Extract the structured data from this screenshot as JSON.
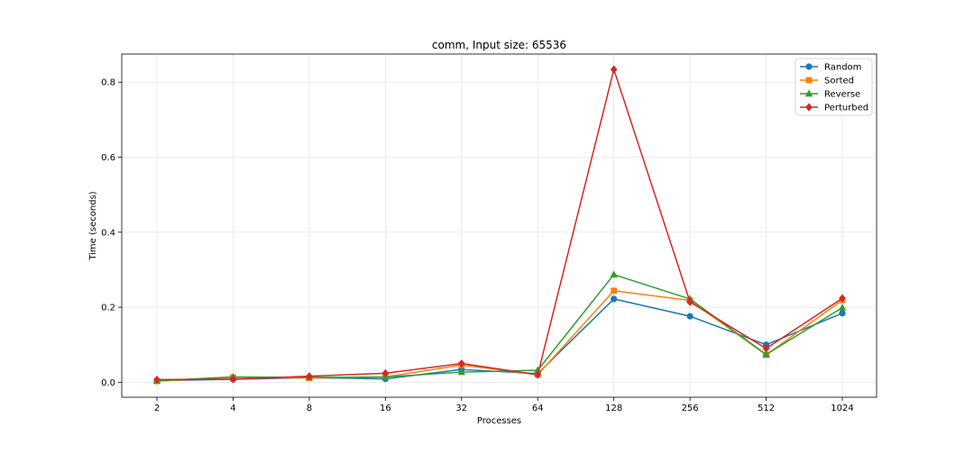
{
  "chart_data": {
    "type": "line",
    "title": "comm, Input size: 65536",
    "xlabel": "Processes",
    "ylabel": "Time (seconds)",
    "categories": [
      "2",
      "4",
      "8",
      "16",
      "32",
      "64",
      "128",
      "256",
      "512",
      "1024"
    ],
    "ylim": [
      -0.04,
      0.875
    ],
    "yticks": [
      0.0,
      0.2,
      0.4,
      0.6,
      0.8
    ],
    "ytick_labels": [
      "0.0",
      "0.2",
      "0.4",
      "0.6",
      "0.8"
    ],
    "grid": true,
    "legend_position": "top-right",
    "series": [
      {
        "name": "Random",
        "color": "#1f77b4",
        "marker": "circle",
        "values": [
          0.004,
          0.008,
          0.012,
          0.009,
          0.034,
          0.023,
          0.222,
          0.176,
          0.1,
          0.184
        ]
      },
      {
        "name": "Sorted",
        "color": "#ff7f0e",
        "marker": "square",
        "values": [
          0.003,
          0.013,
          0.011,
          0.014,
          0.046,
          0.02,
          0.244,
          0.218,
          0.073,
          0.219
        ]
      },
      {
        "name": "Reverse",
        "color": "#2ca02c",
        "marker": "triangle",
        "values": [
          0.004,
          0.014,
          0.013,
          0.014,
          0.027,
          0.032,
          0.287,
          0.222,
          0.074,
          0.199
        ]
      },
      {
        "name": "Perturbed",
        "color": "#d62728",
        "marker": "diamond",
        "values": [
          0.007,
          0.008,
          0.016,
          0.024,
          0.05,
          0.02,
          0.834,
          0.214,
          0.09,
          0.224
        ]
      }
    ]
  }
}
